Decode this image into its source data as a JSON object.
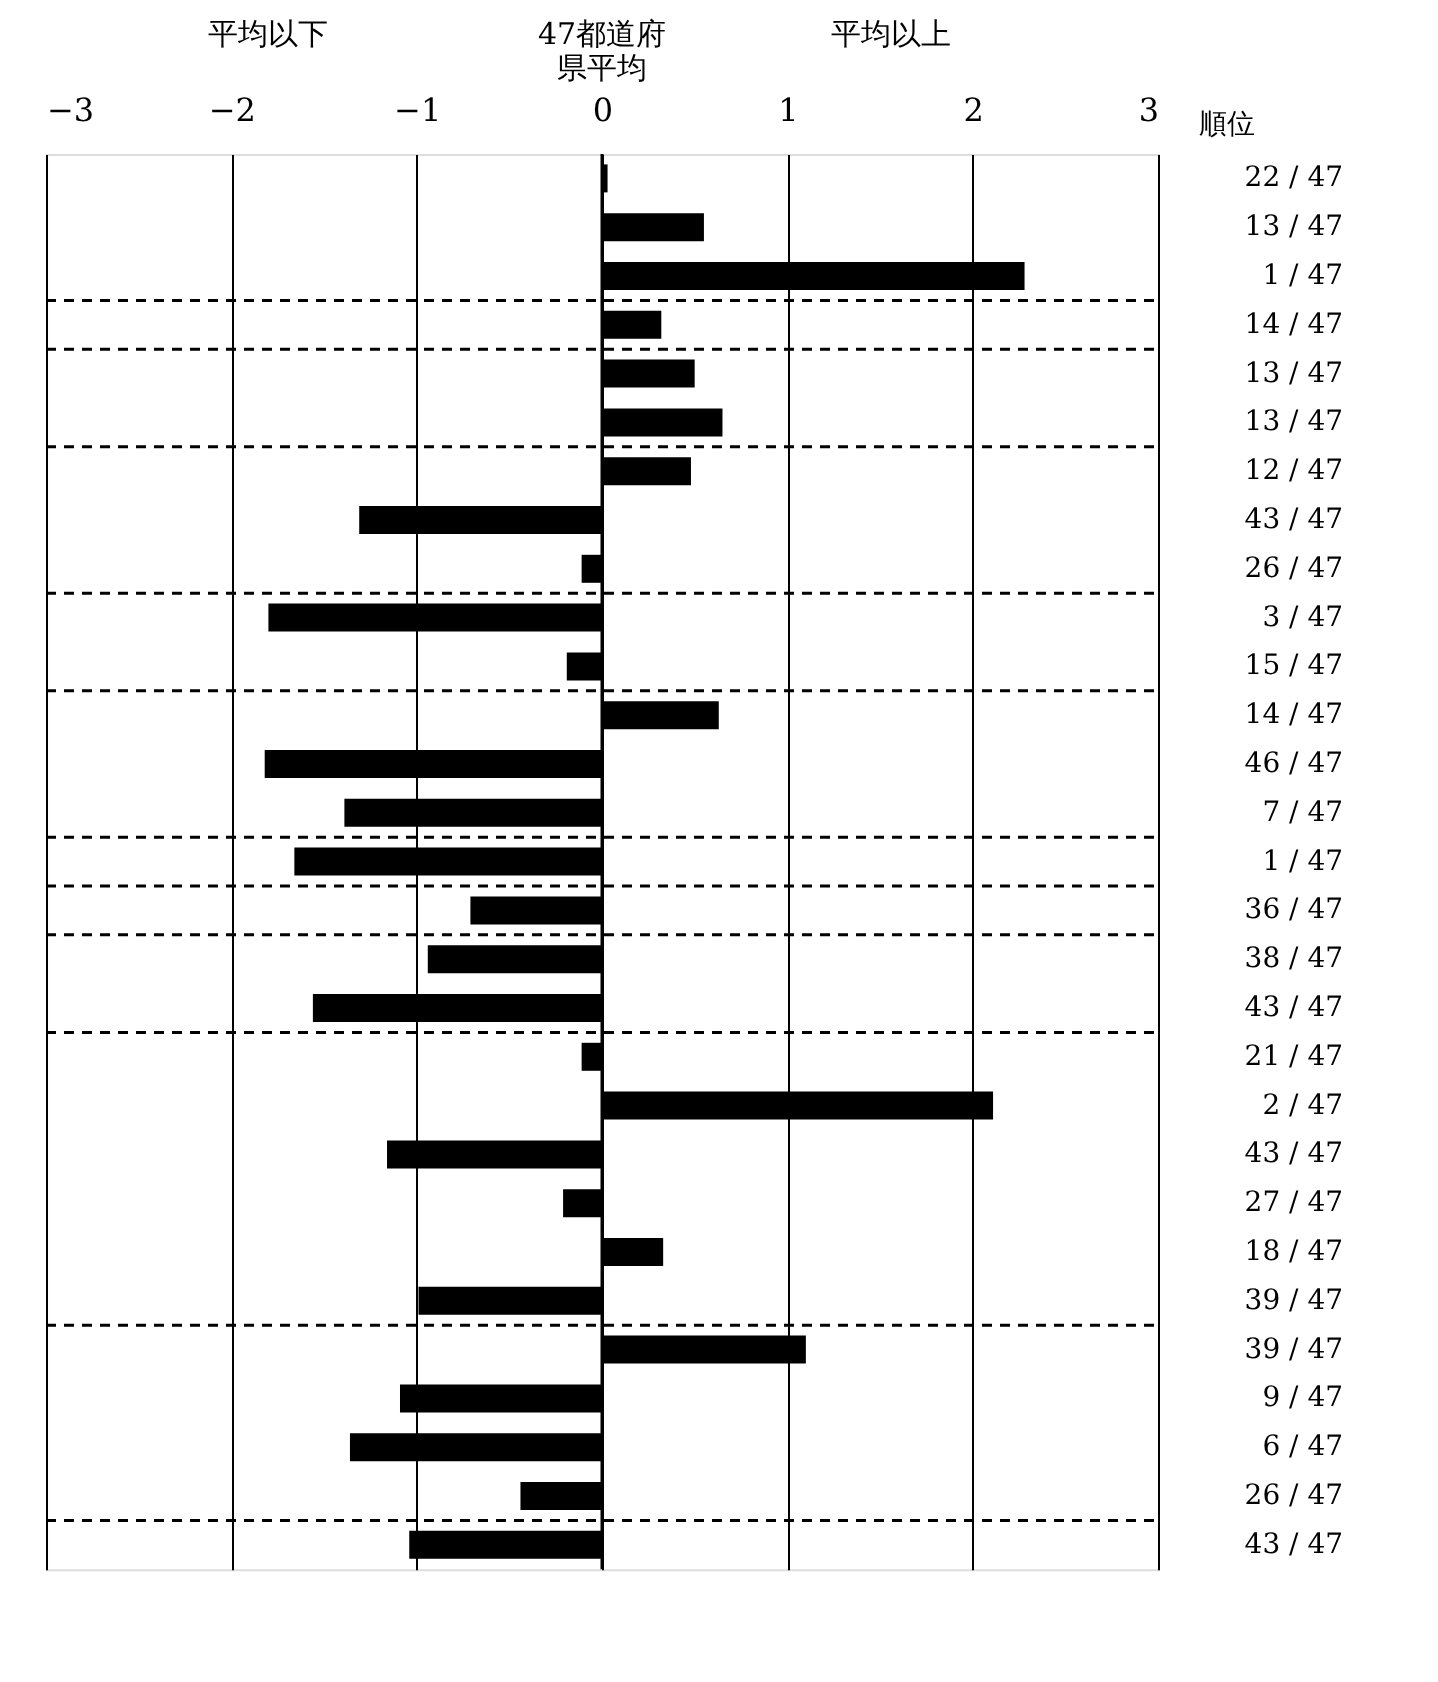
{
  "chart_data": {
    "type": "bar",
    "orientation": "horizontal",
    "categories": [
      "22 / 47",
      "13 / 47",
      "1 / 47",
      "14 / 47",
      "13 / 47",
      "13 / 47",
      "12 / 47",
      "43 / 47",
      "26 / 47",
      "3 / 47",
      "15 / 47",
      "14 / 47",
      "46 / 47",
      "7 / 47",
      "1 / 47",
      "36 / 47",
      "38 / 47",
      "43 / 47",
      "21 / 47",
      "2 / 47",
      "43 / 47",
      "27 / 47",
      "18 / 47",
      "39 / 47",
      "39 / 47",
      "9 / 47",
      "6 / 47",
      "26 / 47",
      "43 / 47"
    ],
    "values": [
      0.03,
      0.55,
      2.28,
      0.32,
      0.5,
      0.65,
      0.48,
      -1.31,
      -0.11,
      -1.8,
      -0.19,
      0.63,
      -1.82,
      -1.39,
      -1.66,
      -0.71,
      -0.94,
      -1.56,
      -0.11,
      2.11,
      -1.16,
      -0.21,
      0.33,
      -0.99,
      1.1,
      -1.09,
      -1.36,
      -0.44,
      -1.04
    ],
    "color": "#000000",
    "ylabel": "順位",
    "annotations": [
      "平均以下",
      "47都道府県平均",
      "平均以上"
    ],
    "xlim": [
      -3,
      3
    ],
    "xticks": [
      -3,
      -2,
      -1,
      0,
      1,
      2,
      3
    ],
    "grid": "x"
  }
}
